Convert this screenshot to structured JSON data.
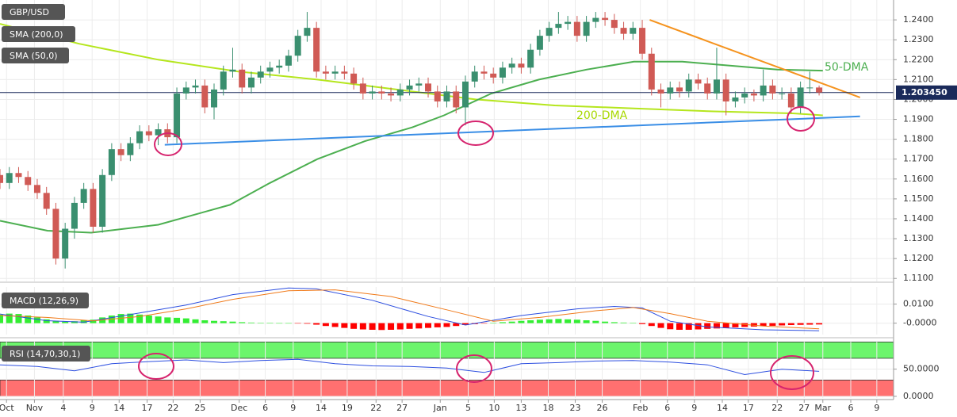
{
  "chart_data": [
    {
      "type": "candlestick",
      "title": "GBP/USD",
      "xlim": [
        0,
        96
      ],
      "ylim": [
        1.1085,
        1.25
      ],
      "yticks": [
        {
          "value": 1.11,
          "label": "1.1100"
        },
        {
          "value": 1.12,
          "label": "1.1200"
        },
        {
          "value": 1.13,
          "label": "1.1300"
        },
        {
          "value": 1.14,
          "label": "1.1400"
        },
        {
          "value": 1.15,
          "label": "1.1500"
        },
        {
          "value": 1.16,
          "label": "1.1600"
        },
        {
          "value": 1.17,
          "label": "1.1700"
        },
        {
          "value": 1.18,
          "label": "1.1800"
        },
        {
          "value": 1.19,
          "label": "1.1900"
        },
        {
          "value": 1.2,
          "label": "1.2000"
        },
        {
          "value": 1.21,
          "label": "1.2100"
        },
        {
          "value": 1.22,
          "label": "1.2200"
        },
        {
          "value": 1.23,
          "label": "1.2300"
        },
        {
          "value": 1.24,
          "label": "1.2400"
        }
      ],
      "up_color": "#3a8f6f",
      "down_color": "#d05a55",
      "ohlc": [
        [
          1.162,
          1.165,
          1.155,
          1.158
        ],
        [
          1.158,
          1.166,
          1.155,
          1.163
        ],
        [
          1.163,
          1.166,
          1.158,
          1.161
        ],
        [
          1.161,
          1.164,
          1.154,
          1.157
        ],
        [
          1.157,
          1.16,
          1.15,
          1.153
        ],
        [
          1.153,
          1.156,
          1.142,
          1.145
        ],
        [
          1.145,
          1.148,
          1.117,
          1.12
        ],
        [
          1.12,
          1.138,
          1.115,
          1.135
        ],
        [
          1.135,
          1.151,
          1.13,
          1.148
        ],
        [
          1.148,
          1.158,
          1.145,
          1.155
        ],
        [
          1.155,
          1.158,
          1.133,
          1.136
        ],
        [
          1.136,
          1.165,
          1.133,
          1.162
        ],
        [
          1.162,
          1.178,
          1.159,
          1.175
        ],
        [
          1.175,
          1.178,
          1.169,
          1.172
        ],
        [
          1.172,
          1.181,
          1.169,
          1.178
        ],
        [
          1.178,
          1.187,
          1.175,
          1.184
        ],
        [
          1.184,
          1.187,
          1.179,
          1.182
        ],
        [
          1.182,
          1.188,
          1.177,
          1.185
        ],
        [
          1.185,
          1.188,
          1.178,
          1.181
        ],
        [
          1.181,
          1.206,
          1.178,
          1.203
        ],
        [
          1.203,
          1.209,
          1.2,
          1.206
        ],
        [
          1.206,
          1.21,
          1.203,
          1.207
        ],
        [
          1.207,
          1.21,
          1.193,
          1.196
        ],
        [
          1.196,
          1.208,
          1.19,
          1.205
        ],
        [
          1.205,
          1.217,
          1.202,
          1.214
        ],
        [
          1.214,
          1.226,
          1.211,
          1.215
        ],
        [
          1.215,
          1.218,
          1.203,
          1.206
        ],
        [
          1.206,
          1.214,
          1.203,
          1.211
        ],
        [
          1.211,
          1.217,
          1.208,
          1.214
        ],
        [
          1.214,
          1.219,
          1.211,
          1.216
        ],
        [
          1.216,
          1.22,
          1.213,
          1.217
        ],
        [
          1.217,
          1.225,
          1.214,
          1.222
        ],
        [
          1.222,
          1.235,
          1.219,
          1.232
        ],
        [
          1.232,
          1.244,
          1.229,
          1.236
        ],
        [
          1.236,
          1.239,
          1.211,
          1.214
        ],
        [
          1.214,
          1.217,
          1.21,
          1.213
        ],
        [
          1.213,
          1.217,
          1.21,
          1.214
        ],
        [
          1.214,
          1.217,
          1.21,
          1.213
        ],
        [
          1.213,
          1.216,
          1.205,
          1.208
        ],
        [
          1.208,
          1.211,
          1.2,
          1.203
        ],
        [
          1.203,
          1.207,
          1.2,
          1.204
        ],
        [
          1.204,
          1.207,
          1.2,
          1.203
        ],
        [
          1.203,
          1.206,
          1.199,
          1.202
        ],
        [
          1.202,
          1.208,
          1.199,
          1.205
        ],
        [
          1.205,
          1.21,
          1.202,
          1.207
        ],
        [
          1.207,
          1.211,
          1.204,
          1.208
        ],
        [
          1.208,
          1.211,
          1.201,
          1.204
        ],
        [
          1.204,
          1.207,
          1.196,
          1.199
        ],
        [
          1.199,
          1.207,
          1.196,
          1.204
        ],
        [
          1.204,
          1.207,
          1.193,
          1.196
        ],
        [
          1.196,
          1.212,
          1.187,
          1.209
        ],
        [
          1.209,
          1.217,
          1.206,
          1.214
        ],
        [
          1.214,
          1.217,
          1.21,
          1.213
        ],
        [
          1.213,
          1.216,
          1.208,
          1.211
        ],
        [
          1.211,
          1.219,
          1.208,
          1.216
        ],
        [
          1.216,
          1.221,
          1.213,
          1.218
        ],
        [
          1.218,
          1.221,
          1.213,
          1.216
        ],
        [
          1.216,
          1.228,
          1.213,
          1.225
        ],
        [
          1.225,
          1.235,
          1.222,
          1.232
        ],
        [
          1.232,
          1.239,
          1.229,
          1.236
        ],
        [
          1.236,
          1.244,
          1.233,
          1.238
        ],
        [
          1.238,
          1.242,
          1.235,
          1.239
        ],
        [
          1.239,
          1.242,
          1.229,
          1.232
        ],
        [
          1.232,
          1.242,
          1.229,
          1.239
        ],
        [
          1.239,
          1.244,
          1.236,
          1.241
        ],
        [
          1.241,
          1.244,
          1.237,
          1.24
        ],
        [
          1.24,
          1.243,
          1.233,
          1.236
        ],
        [
          1.236,
          1.239,
          1.23,
          1.233
        ],
        [
          1.233,
          1.239,
          1.23,
          1.236
        ],
        [
          1.236,
          1.24,
          1.22,
          1.223
        ],
        [
          1.223,
          1.226,
          1.202,
          1.205
        ],
        [
          1.205,
          1.208,
          1.196,
          1.203
        ],
        [
          1.203,
          1.209,
          1.2,
          1.206
        ],
        [
          1.206,
          1.209,
          1.201,
          1.204
        ],
        [
          1.204,
          1.213,
          1.201,
          1.21
        ],
        [
          1.21,
          1.213,
          1.205,
          1.208
        ],
        [
          1.208,
          1.211,
          1.2,
          1.203
        ],
        [
          1.203,
          1.226,
          1.2,
          1.21
        ],
        [
          1.21,
          1.213,
          1.192,
          1.199
        ],
        [
          1.199,
          1.204,
          1.196,
          1.201
        ],
        [
          1.201,
          1.206,
          1.198,
          1.203
        ],
        [
          1.203,
          1.205,
          1.199,
          1.202
        ],
        [
          1.202,
          1.215,
          1.199,
          1.207
        ],
        [
          1.207,
          1.21,
          1.2,
          1.203
        ],
        [
          1.203,
          1.206,
          1.2,
          1.203
        ],
        [
          1.203,
          1.206,
          1.193,
          1.196
        ],
        [
          1.196,
          1.209,
          1.193,
          1.206
        ],
        [
          1.206,
          1.214,
          1.203,
          1.206
        ],
        [
          1.206,
          1.207,
          1.202,
          1.2035
        ]
      ],
      "series": [
        {
          "name": "SMA (200,0)",
          "color": "#b5e61d",
          "x": [
            0,
            8.5,
            17,
            25.6,
            34.1,
            42.6,
            51.1,
            59.6,
            68.1,
            76.7,
            85.2,
            88.4
          ],
          "values": [
            1.238,
            1.228,
            1.22,
            1.214,
            1.21,
            1.205,
            1.2,
            1.197,
            1.1955,
            1.194,
            1.193,
            1.192
          ]
        },
        {
          "name": "SMA (50,0)",
          "color": "#4caf50",
          "x": [
            0,
            5.1,
            9.8,
            17,
            24.7,
            29,
            34.1,
            39.2,
            44.3,
            47.7,
            52.8,
            57.9,
            63,
            68.1,
            73.3,
            78.4,
            83.5,
            88.4
          ],
          "values": [
            1.139,
            1.134,
            1.133,
            1.137,
            1.147,
            1.158,
            1.17,
            1.179,
            1.186,
            1.192,
            1.203,
            1.21,
            1.215,
            1.219,
            1.219,
            1.217,
            1.215,
            1.2145
          ]
        }
      ],
      "trendlines": [
        {
          "color": "#3a8ee6",
          "x": [
            17.7,
            92.4
          ],
          "values": [
            1.1772,
            1.1915
          ]
        },
        {
          "color": "#f5931e",
          "x": [
            69.8,
            92.4
          ],
          "values": [
            1.24,
            1.201
          ]
        }
      ],
      "last_price": {
        "value": 1.20345,
        "label": "1.203450"
      },
      "annotations": [
        {
          "text": "50-DMA",
          "color": "#4caf50"
        },
        {
          "text": "200-DMA",
          "color": "#a8d800"
        }
      ]
    },
    {
      "type": "bar",
      "title": "MACD (12,26,9)",
      "xlim": [
        0,
        96
      ],
      "ylim": [
        -0.006,
        0.019
      ],
      "yticks": [
        {
          "value": 0.01,
          "label": "0.0100"
        },
        {
          "value": 0,
          "label": "-0.0000"
        }
      ],
      "color_up": "#33ee33",
      "color_down": "#ff0000",
      "values": [
        0.0045,
        0.005,
        0.0048,
        0.004,
        0.003,
        0.002,
        0.0012,
        0.0008,
        0.001,
        0.0015,
        0.0018,
        0.003,
        0.004,
        0.0048,
        0.005,
        0.0045,
        0.004,
        0.0035,
        0.003,
        0.0028,
        0.0025,
        0.002,
        0.0015,
        0.0012,
        0.001,
        0.0008,
        0.0005,
        0.0003,
        0.0002,
        0.0001,
        0,
        0,
        -0.0001,
        -0.0003,
        -0.0008,
        -0.0015,
        -0.002,
        -0.0025,
        -0.003,
        -0.0033,
        -0.0035,
        -0.0036,
        -0.0035,
        -0.0033,
        -0.003,
        -0.0028,
        -0.0025,
        -0.0022,
        -0.002,
        -0.0015,
        -0.001,
        -0.0005,
        -0.0002,
        0.0002,
        0.0005,
        0.0008,
        0.0012,
        0.0015,
        0.0018,
        0.002,
        0.0022,
        0.002,
        0.0018,
        0.0015,
        0.0012,
        0.0008,
        0.0005,
        0.0003,
        0.0001,
        -0.0005,
        -0.0015,
        -0.0025,
        -0.0032,
        -0.0035,
        -0.0035,
        -0.0033,
        -0.003,
        -0.0028,
        -0.0025,
        -0.0022,
        -0.002,
        -0.0018,
        -0.0016,
        -0.0014,
        -0.0012,
        -0.001,
        -0.0009,
        -0.0008,
        -0.0007
      ],
      "series": [
        {
          "color": "#2d4fe0",
          "x": [
            0,
            5,
            9,
            14,
            20,
            25,
            31,
            34,
            40,
            46,
            50,
            56,
            62,
            66,
            69,
            72,
            76,
            82,
            88
          ],
          "values": [
            0.0048,
            0.0013,
            0.0005,
            0.0045,
            0.0095,
            0.015,
            0.0185,
            0.018,
            0.012,
            0.0035,
            -0.001,
            0.004,
            0.0075,
            0.0088,
            0.008,
            0.001,
            -0.002,
            -0.0035,
            -0.004
          ]
        },
        {
          "color": "#f07a1a",
          "x": [
            0,
            5,
            10,
            15,
            20,
            25,
            31,
            36,
            42,
            48,
            53,
            58,
            64,
            68,
            72,
            76,
            82,
            88
          ],
          "values": [
            0.004,
            0.003,
            0.0012,
            0.0035,
            0.0075,
            0.0125,
            0.017,
            0.0175,
            0.014,
            0.007,
            0.001,
            0.003,
            0.0065,
            0.0082,
            0.005,
            0.001,
            -0.0015,
            -0.003
          ]
        }
      ]
    },
    {
      "type": "line",
      "title": "RSI (14,70,30,1)",
      "xlim": [
        0,
        96
      ],
      "ylim": [
        -3,
        102
      ],
      "yticks": [
        {
          "value": 50,
          "label": "50.0000"
        },
        {
          "value": 0,
          "label": "0.0000"
        }
      ],
      "bands": [
        {
          "from": 70,
          "to": 100,
          "color": "#6cf56c"
        },
        {
          "from": 0,
          "to": 30,
          "color": "#ff7070"
        }
      ],
      "series": [
        {
          "color": "#2d4fe0",
          "x": [
            0,
            4,
            8,
            12,
            16,
            20,
            24,
            28,
            32,
            36,
            40,
            44,
            48,
            52,
            56,
            60,
            64,
            68,
            72,
            76,
            80,
            84,
            88
          ],
          "values": [
            58,
            55,
            47,
            60,
            64,
            67,
            62,
            66,
            68,
            60,
            56,
            55,
            52,
            44,
            60,
            62,
            65,
            66,
            63,
            58,
            40,
            50,
            46
          ]
        }
      ],
      "xticks": [
        {
          "value": 0.7,
          "label": "Oct"
        },
        {
          "value": 3.7,
          "label": "Nov"
        },
        {
          "value": 6.8,
          "label": "4"
        },
        {
          "value": 9.9,
          "label": "9"
        },
        {
          "value": 12.8,
          "label": "14"
        },
        {
          "value": 15.8,
          "label": "17"
        },
        {
          "value": 18.6,
          "label": "22"
        },
        {
          "value": 21.5,
          "label": "25"
        },
        {
          "value": 25.7,
          "label": "Dec"
        },
        {
          "value": 28.5,
          "label": "6"
        },
        {
          "value": 31.5,
          "label": "9"
        },
        {
          "value": 34.5,
          "label": "14"
        },
        {
          "value": 37.3,
          "label": "19"
        },
        {
          "value": 40.4,
          "label": "22"
        },
        {
          "value": 43.2,
          "label": "27"
        },
        {
          "value": 47.3,
          "label": "Jan"
        },
        {
          "value": 50.3,
          "label": "5"
        },
        {
          "value": 53.1,
          "label": "10"
        },
        {
          "value": 56,
          "label": "13"
        },
        {
          "value": 58.9,
          "label": "18"
        },
        {
          "value": 61.8,
          "label": "23"
        },
        {
          "value": 64.7,
          "label": "26"
        },
        {
          "value": 68.8,
          "label": "Feb"
        },
        {
          "value": 71.7,
          "label": "6"
        },
        {
          "value": 74.6,
          "label": "9"
        },
        {
          "value": 77.6,
          "label": "14"
        },
        {
          "value": 80.4,
          "label": "17"
        },
        {
          "value": 83.5,
          "label": "22"
        },
        {
          "value": 86.4,
          "label": "27"
        },
        {
          "value": 88.4,
          "label": "Mar"
        },
        {
          "value": 91.4,
          "label": "6"
        },
        {
          "value": 94.2,
          "label": "9"
        }
      ]
    }
  ]
}
